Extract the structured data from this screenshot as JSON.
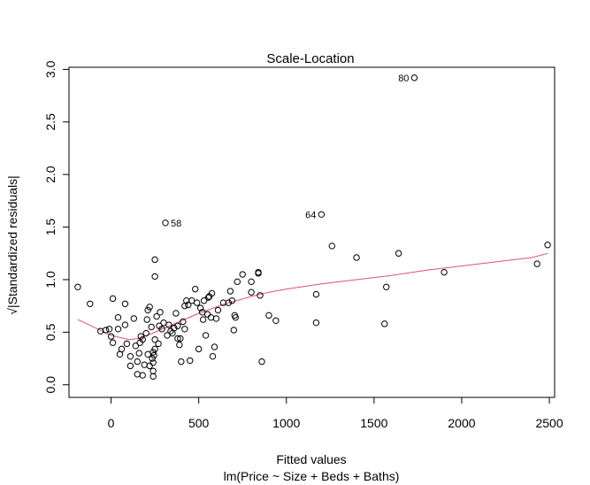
{
  "chart_data": {
    "type": "scatter",
    "title": "Scale-Location",
    "xlabel": "Fitted values",
    "subxlabel": "lm(Price ~ Size + Beds + Baths)",
    "ylabel": "√|Standardized residuals|",
    "xlim": [
      -240,
      2530
    ],
    "ylim": [
      -0.12,
      3.02
    ],
    "xticks": [
      0,
      500,
      1000,
      1500,
      2000,
      2500
    ],
    "yticks": [
      0.0,
      0.5,
      1.0,
      1.5,
      2.0,
      2.5,
      3.0
    ],
    "ytick_labels": [
      "0.0",
      "0.5",
      "1.0",
      "1.5",
      "2.0",
      "2.5",
      "3.0"
    ],
    "grid": false,
    "point_color": "#000000",
    "smooth_color": "#DF536B",
    "points": [
      [
        -190,
        0.93
      ],
      [
        -120,
        0.77
      ],
      [
        -60,
        0.51
      ],
      [
        -30,
        0.52
      ],
      [
        -10,
        0.53
      ],
      [
        0,
        0.46
      ],
      [
        10,
        0.4
      ],
      [
        10,
        0.82
      ],
      [
        40,
        0.53
      ],
      [
        40,
        0.64
      ],
      [
        50,
        0.29
      ],
      [
        60,
        0.34
      ],
      [
        80,
        0.57
      ],
      [
        80,
        0.77
      ],
      [
        90,
        0.39
      ],
      [
        110,
        0.18
      ],
      [
        110,
        0.27
      ],
      [
        130,
        0.63
      ],
      [
        140,
        0.37
      ],
      [
        150,
        0.1
      ],
      [
        150,
        0.22
      ],
      [
        160,
        0.3
      ],
      [
        165,
        0.4
      ],
      [
        170,
        0.46
      ],
      [
        180,
        0.43
      ],
      [
        180,
        0.09
      ],
      [
        190,
        0.19
      ],
      [
        200,
        0.49
      ],
      [
        205,
        0.62
      ],
      [
        210,
        0.29
      ],
      [
        210,
        0.71
      ],
      [
        220,
        0.18
      ],
      [
        220,
        0.74
      ],
      [
        230,
        0.55
      ],
      [
        235,
        0.25
      ],
      [
        240,
        0.31
      ],
      [
        240,
        0.21
      ],
      [
        240,
        0.13
      ],
      [
        240,
        0.08
      ],
      [
        245,
        0.28
      ],
      [
        250,
        0.34
      ],
      [
        250,
        0.43
      ],
      [
        250,
        1.03
      ],
      [
        250,
        1.19
      ],
      [
        260,
        0.65
      ],
      [
        270,
        0.39
      ],
      [
        275,
        0.56
      ],
      [
        280,
        0.69
      ],
      [
        290,
        0.53
      ],
      [
        300,
        0.59
      ],
      [
        310,
        1.54
      ],
      [
        320,
        0.47
      ],
      [
        330,
        0.57
      ],
      [
        340,
        0.51
      ],
      [
        350,
        0.49
      ],
      [
        360,
        0.54
      ],
      [
        370,
        0.68
      ],
      [
        380,
        0.44
      ],
      [
        380,
        0.56
      ],
      [
        390,
        0.38
      ],
      [
        395,
        0.44
      ],
      [
        400,
        0.22
      ],
      [
        410,
        0.6
      ],
      [
        420,
        0.53
      ],
      [
        420,
        0.75
      ],
      [
        430,
        0.8
      ],
      [
        440,
        0.76
      ],
      [
        450,
        0.23
      ],
      [
        460,
        0.8
      ],
      [
        480,
        0.91
      ],
      [
        490,
        0.78
      ],
      [
        500,
        0.34
      ],
      [
        510,
        0.73
      ],
      [
        520,
        0.69
      ],
      [
        525,
        0.62
      ],
      [
        530,
        0.8
      ],
      [
        540,
        0.47
      ],
      [
        550,
        0.67
      ],
      [
        555,
        0.83
      ],
      [
        560,
        0.84
      ],
      [
        570,
        0.64
      ],
      [
        575,
        0.87
      ],
      [
        580,
        0.27
      ],
      [
        590,
        0.36
      ],
      [
        600,
        0.63
      ],
      [
        610,
        0.71
      ],
      [
        640,
        0.78
      ],
      [
        670,
        0.78
      ],
      [
        680,
        0.89
      ],
      [
        690,
        0.8
      ],
      [
        700,
        0.52
      ],
      [
        705,
        0.66
      ],
      [
        710,
        0.64
      ],
      [
        720,
        0.98
      ],
      [
        750,
        1.05
      ],
      [
        800,
        0.88
      ],
      [
        800,
        0.98
      ],
      [
        840,
        1.07
      ],
      [
        840,
        1.06
      ],
      [
        850,
        0.85
      ],
      [
        860,
        0.22
      ],
      [
        900,
        0.66
      ],
      [
        940,
        0.61
      ],
      [
        1170,
        0.59
      ],
      [
        1170,
        0.86
      ],
      [
        1200,
        1.62
      ],
      [
        1260,
        1.32
      ],
      [
        1400,
        1.21
      ],
      [
        1560,
        0.58
      ],
      [
        1570,
        0.93
      ],
      [
        1640,
        1.25
      ],
      [
        1730,
        2.92
      ],
      [
        1900,
        1.07
      ],
      [
        2430,
        1.15
      ],
      [
        2490,
        1.33
      ]
    ],
    "labeled_points": [
      {
        "label": "80",
        "x": 1730,
        "y": 2.92
      },
      {
        "label": "64",
        "x": 1200,
        "y": 1.62
      },
      {
        "label": "58",
        "x": 310,
        "y": 1.54
      }
    ],
    "smooth_line": [
      [
        -190,
        0.62
      ],
      [
        -100,
        0.55
      ],
      [
        0,
        0.47
      ],
      [
        100,
        0.43
      ],
      [
        160,
        0.44
      ],
      [
        250,
        0.5
      ],
      [
        350,
        0.57
      ],
      [
        500,
        0.68
      ],
      [
        650,
        0.77
      ],
      [
        800,
        0.84
      ],
      [
        900,
        0.88
      ],
      [
        1000,
        0.91
      ],
      [
        1200,
        0.96
      ],
      [
        1400,
        1.0
      ],
      [
        1600,
        1.04
      ],
      [
        1800,
        1.09
      ],
      [
        2000,
        1.13
      ],
      [
        2200,
        1.17
      ],
      [
        2400,
        1.21
      ],
      [
        2490,
        1.25
      ]
    ]
  }
}
